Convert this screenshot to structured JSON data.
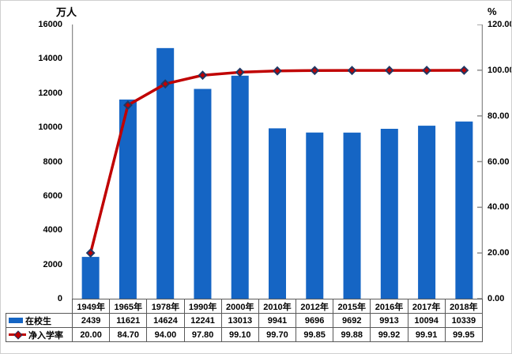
{
  "chart_data": {
    "type": "bar",
    "subtype": "combo-bar-line",
    "categories": [
      "1949年",
      "1965年",
      "1978年",
      "1990年",
      "2000年",
      "2010年",
      "2012年",
      "2015年",
      "2016年",
      "2017年",
      "2018年"
    ],
    "series": [
      {
        "name": "在校生",
        "type": "bar",
        "axis": "left",
        "values": [
          2439,
          11621,
          14624,
          12241,
          13013,
          9941,
          9696,
          9692,
          9913,
          10094,
          10339
        ],
        "value_labels": [
          "2439",
          "11621",
          "14624",
          "12241",
          "13013",
          "9941",
          "9696",
          "9692",
          "9913",
          "10094",
          "10339"
        ]
      },
      {
        "name": "净入学率",
        "type": "line",
        "axis": "right",
        "values": [
          20.0,
          84.7,
          94.0,
          97.8,
          99.1,
          99.7,
          99.85,
          99.88,
          99.92,
          99.91,
          99.95
        ],
        "value_labels": [
          "20.00",
          "84.70",
          "94.00",
          "97.80",
          "99.10",
          "99.70",
          "99.85",
          "99.88",
          "99.92",
          "99.91",
          "99.95"
        ]
      }
    ],
    "left_axis": {
      "title": "万人",
      "min": 0,
      "max": 16000,
      "tick_step": 2000,
      "tick_labels": [
        "0",
        "2000",
        "4000",
        "6000",
        "8000",
        "10000",
        "12000",
        "14000",
        "16000"
      ]
    },
    "right_axis": {
      "title": "%",
      "min": 0,
      "max": 120,
      "tick_step": 20,
      "tick_labels": [
        "0.00",
        "20.00",
        "40.00",
        "60.00",
        "80.00",
        "100.00",
        "120.00"
      ]
    },
    "grid": false,
    "legend_position": "data-table-left",
    "colors": {
      "bar": "#1565c4",
      "line": "#c00000",
      "marker_fill": "#c00000",
      "marker_border": "#203864",
      "axis_line": "#8c8c8c",
      "table_border": "#595959",
      "text": "#000000"
    }
  }
}
